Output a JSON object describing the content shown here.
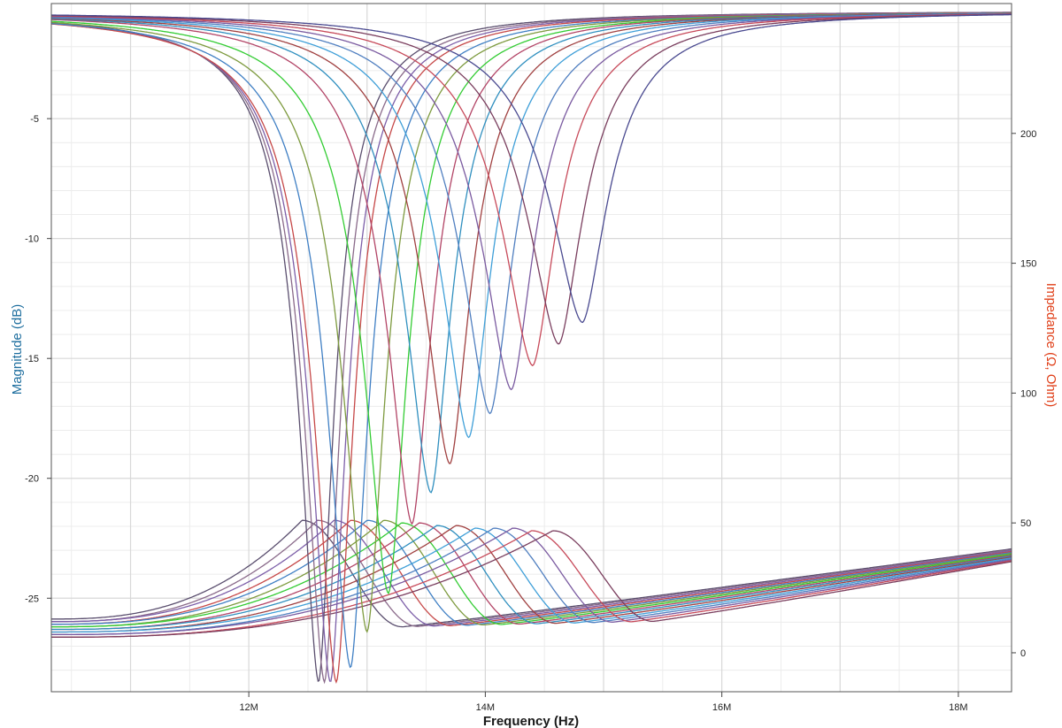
{
  "chart_data": {
    "type": "line",
    "title": "",
    "xlabel": "Frequency (Hz)",
    "ylabel_left": "Magnitude (dB)",
    "ylabel_right": "Impedance (Ω, Ohm)",
    "xlim": [
      10330000,
      18450000
    ],
    "ylim_left": [
      -28.9,
      -0.2
    ],
    "ylim_right": [
      -15,
      250
    ],
    "x_ticks": [
      {
        "value": 12000000,
        "label": "12M"
      },
      {
        "value": 14000000,
        "label": "14M"
      },
      {
        "value": 16000000,
        "label": "16M"
      },
      {
        "value": 18000000,
        "label": "18M"
      }
    ],
    "y_left_ticks": [
      {
        "value": -5,
        "label": "-5"
      },
      {
        "value": -10,
        "label": "-10"
      },
      {
        "value": -15,
        "label": "-15"
      },
      {
        "value": -20,
        "label": "-20"
      },
      {
        "value": -25,
        "label": "-25"
      }
    ],
    "y_right_ticks": [
      {
        "value": 0,
        "label": "0"
      },
      {
        "value": 50,
        "label": "50"
      },
      {
        "value": 100,
        "label": "100"
      },
      {
        "value": 150,
        "label": "150"
      },
      {
        "value": 200,
        "label": "200"
      }
    ],
    "grid": true,
    "colors": {
      "left_axis_title": "#1f6f9f",
      "right_axis_title": "#e0401a",
      "major_grid": "#d8d8d8",
      "minor_grid": "#ececec"
    },
    "series_colors": [
      "#5a4e6e",
      "#8a6a8a",
      "#7c5ea8",
      "#c64848",
      "#3f7fc4",
      "#7d9a3e",
      "#33cc33",
      "#b24466",
      "#2f8fbf",
      "#a04040",
      "#3f9fd8",
      "#507fc0",
      "#7a5aa0",
      "#c74a5a",
      "#7a3e5e",
      "#4a4a90"
    ],
    "magnitude_series": {
      "f0_Hz": [
        12590000,
        12640000,
        12690000,
        12740000,
        12860000,
        13000000,
        13180000,
        13380000,
        13540000,
        13700000,
        13860000,
        14040000,
        14220000,
        14400000,
        14620000,
        14820000
      ],
      "min_dB": [
        -28.5,
        -28.5,
        -28.5,
        -28.5,
        -27.9,
        -26.4,
        -24.8,
        -21.9,
        -20.6,
        -19.4,
        -18.3,
        -17.3,
        -16.3,
        -15.3,
        -14.4,
        -13.5
      ],
      "top_dB": -0.5
    },
    "impedance_series": {
      "peak_f_Hz": [
        12450000,
        12580000,
        12720000,
        12860000,
        13000000,
        13140000,
        13290000,
        13440000,
        13590000,
        13750000,
        13910000,
        14070000,
        14230000,
        14390000,
        14570000
      ],
      "peak_ohm": [
        51,
        51,
        51,
        51,
        51,
        51,
        50,
        50,
        49,
        49,
        48,
        48,
        48,
        47,
        47
      ],
      "start_ohm_at_xmin": [
        13,
        12,
        12,
        11,
        11,
        10,
        10,
        9,
        9,
        8,
        8,
        7,
        7,
        6,
        6
      ],
      "end_ohm_at_xmax": 40,
      "valley_ohm": 10
    }
  }
}
